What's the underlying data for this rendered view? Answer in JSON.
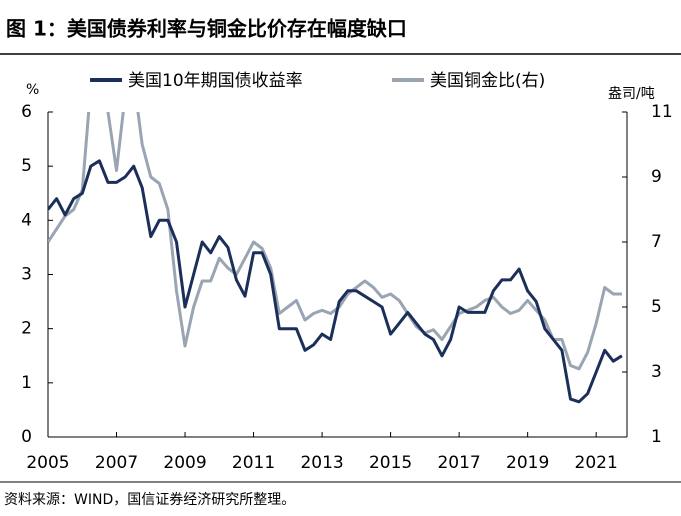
{
  "chart_data": {
    "type": "line",
    "title": "图 1：美国债券利率与铜金比价存在幅度缺口",
    "y_unit": "%",
    "y2_unit": "盎司/吨",
    "source": "资料来源：WIND，国信证券经济研究所整理。",
    "x": [
      2005,
      2005.25,
      2005.5,
      2005.75,
      2006,
      2006.25,
      2006.5,
      2006.75,
      2007,
      2007.25,
      2007.5,
      2007.75,
      2008,
      2008.25,
      2008.5,
      2008.75,
      2009,
      2009.25,
      2009.5,
      2009.75,
      2010,
      2010.25,
      2010.5,
      2010.75,
      2011,
      2011.25,
      2011.5,
      2011.75,
      2012,
      2012.25,
      2012.5,
      2012.75,
      2013,
      2013.25,
      2013.5,
      2013.75,
      2014,
      2014.25,
      2014.5,
      2014.75,
      2015,
      2015.25,
      2015.5,
      2015.75,
      2016,
      2016.25,
      2016.5,
      2016.75,
      2017,
      2017.25,
      2017.5,
      2017.75,
      2018,
      2018.25,
      2018.5,
      2018.75,
      2019,
      2019.25,
      2019.5,
      2019.75,
      2020,
      2020.25,
      2020.5,
      2020.75,
      2021,
      2021.25,
      2021.5,
      2021.75
    ],
    "xlim": [
      2005,
      2021.9
    ],
    "xticks": [
      2005,
      2007,
      2009,
      2011,
      2013,
      2015,
      2017,
      2019,
      2021
    ],
    "ylim": [
      0,
      6
    ],
    "yticks": [
      0,
      1,
      2,
      3,
      4,
      5,
      6
    ],
    "y2lim": [
      1,
      11
    ],
    "y2ticks": [
      1,
      3,
      5,
      7,
      9,
      11
    ],
    "legend": "top",
    "series": [
      {
        "name": "美国10年期国债收益率",
        "color": "#1b2f5a",
        "values": [
          4.2,
          4.4,
          4.1,
          4.4,
          4.5,
          5.0,
          5.1,
          4.7,
          4.7,
          4.8,
          5.0,
          4.6,
          3.7,
          4.0,
          4.0,
          3.6,
          2.4,
          3.0,
          3.6,
          3.4,
          3.7,
          3.5,
          2.9,
          2.6,
          3.4,
          3.4,
          3.0,
          2.0,
          2.0,
          2.0,
          1.6,
          1.7,
          1.9,
          1.8,
          2.5,
          2.7,
          2.7,
          2.6,
          2.5,
          2.4,
          1.9,
          2.1,
          2.3,
          2.1,
          1.9,
          1.8,
          1.5,
          1.8,
          2.4,
          2.3,
          2.3,
          2.3,
          2.7,
          2.9,
          2.9,
          3.1,
          2.7,
          2.5,
          2.0,
          1.8,
          1.6,
          0.7,
          0.65,
          0.8,
          1.2,
          1.6,
          1.4,
          1.5
        ]
      },
      {
        "name": "美国铜金比(右)",
        "color": "#9aa5b3",
        "axis": "y2",
        "values": [
          7.0,
          7.4,
          7.8,
          8.0,
          8.6,
          11.8,
          12.5,
          11.0,
          9.2,
          11.5,
          12.0,
          10.0,
          9.0,
          8.8,
          8.0,
          5.5,
          3.8,
          5.0,
          5.8,
          5.8,
          6.5,
          6.2,
          6.0,
          6.5,
          7.0,
          6.8,
          6.2,
          4.8,
          5.0,
          5.2,
          4.6,
          4.8,
          4.9,
          4.8,
          5.0,
          5.4,
          5.6,
          5.8,
          5.6,
          5.3,
          5.4,
          5.2,
          4.8,
          4.4,
          4.2,
          4.3,
          4.0,
          4.4,
          4.8,
          4.9,
          5.0,
          5.2,
          5.3,
          5.0,
          4.8,
          4.9,
          5.2,
          4.9,
          4.6,
          4.0,
          4.0,
          3.2,
          3.1,
          3.6,
          4.5,
          5.6,
          5.4,
          5.4
        ]
      }
    ]
  }
}
